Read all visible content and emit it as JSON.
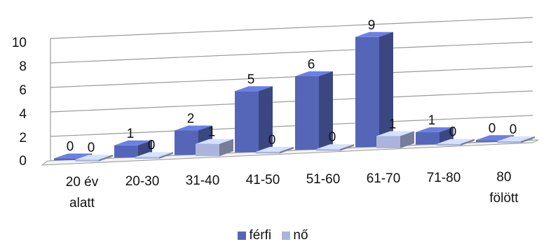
{
  "chart_data": {
    "type": "bar",
    "style": "3d-clustered",
    "categories": [
      [
        "20 év",
        "alatt"
      ],
      [
        "20-30"
      ],
      [
        "31-40"
      ],
      [
        "41-50"
      ],
      [
        "51-60"
      ],
      [
        "61-70"
      ],
      [
        "71-80"
      ],
      [
        "80",
        "fölött"
      ]
    ],
    "series": [
      {
        "name": "férfi",
        "color": "#5566b8",
        "values": [
          0,
          1,
          2,
          5,
          6,
          9,
          1,
          0
        ]
      },
      {
        "name": "nő",
        "color": "#aab4dc",
        "values": [
          0,
          0,
          1,
          0,
          0,
          1,
          0,
          0
        ]
      }
    ],
    "yticks": [
      0,
      2,
      4,
      6,
      8,
      10
    ],
    "ylim": [
      0,
      10
    ],
    "grid": true,
    "legend_position": "bottom"
  }
}
